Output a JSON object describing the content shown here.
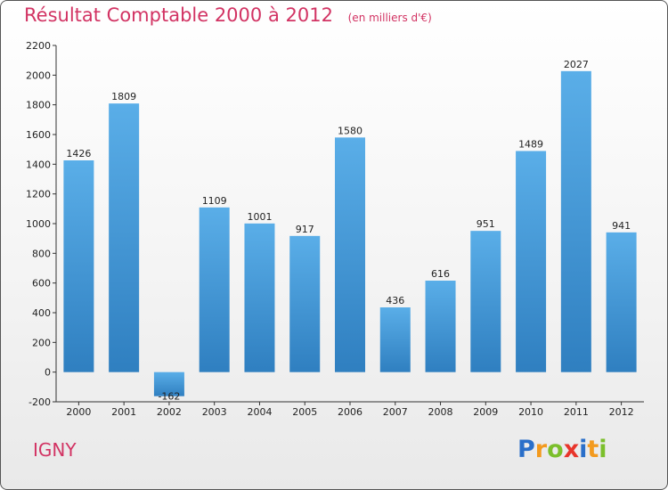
{
  "chart_data": {
    "type": "bar",
    "title": "Résultat Comptable 2000 à 2012",
    "unit_label": "(en milliers d'€)",
    "categories": [
      "2000",
      "2001",
      "2002",
      "2003",
      "2004",
      "2005",
      "2006",
      "2007",
      "2008",
      "2009",
      "2010",
      "2011",
      "2012"
    ],
    "values": [
      1426,
      1809,
      -162,
      1109,
      1001,
      917,
      1580,
      436,
      616,
      951,
      1489,
      2027,
      941
    ],
    "data_labels": [
      "1426",
      "1809",
      "-162",
      "1109",
      "1001",
      "917",
      "1580",
      "436",
      "616",
      "951",
      "1489",
      "2027",
      "941"
    ],
    "ylim": [
      -200,
      2200
    ],
    "yticks": [
      -200,
      0,
      200,
      400,
      600,
      800,
      1000,
      1200,
      1400,
      1600,
      1800,
      2000,
      2200
    ],
    "grid": false,
    "xlabel": "",
    "ylabel": "",
    "bar_color": "#4a9fdb"
  },
  "commune": "IGNY",
  "logo": {
    "letters": [
      "P",
      "r",
      "o",
      "x",
      "i",
      "t",
      "i"
    ],
    "colors": [
      "#2a6fc9",
      "#f39a1e",
      "#7bbf2b",
      "#e8352b",
      "#2a6fc9",
      "#f39a1e",
      "#7bbf2b"
    ]
  }
}
